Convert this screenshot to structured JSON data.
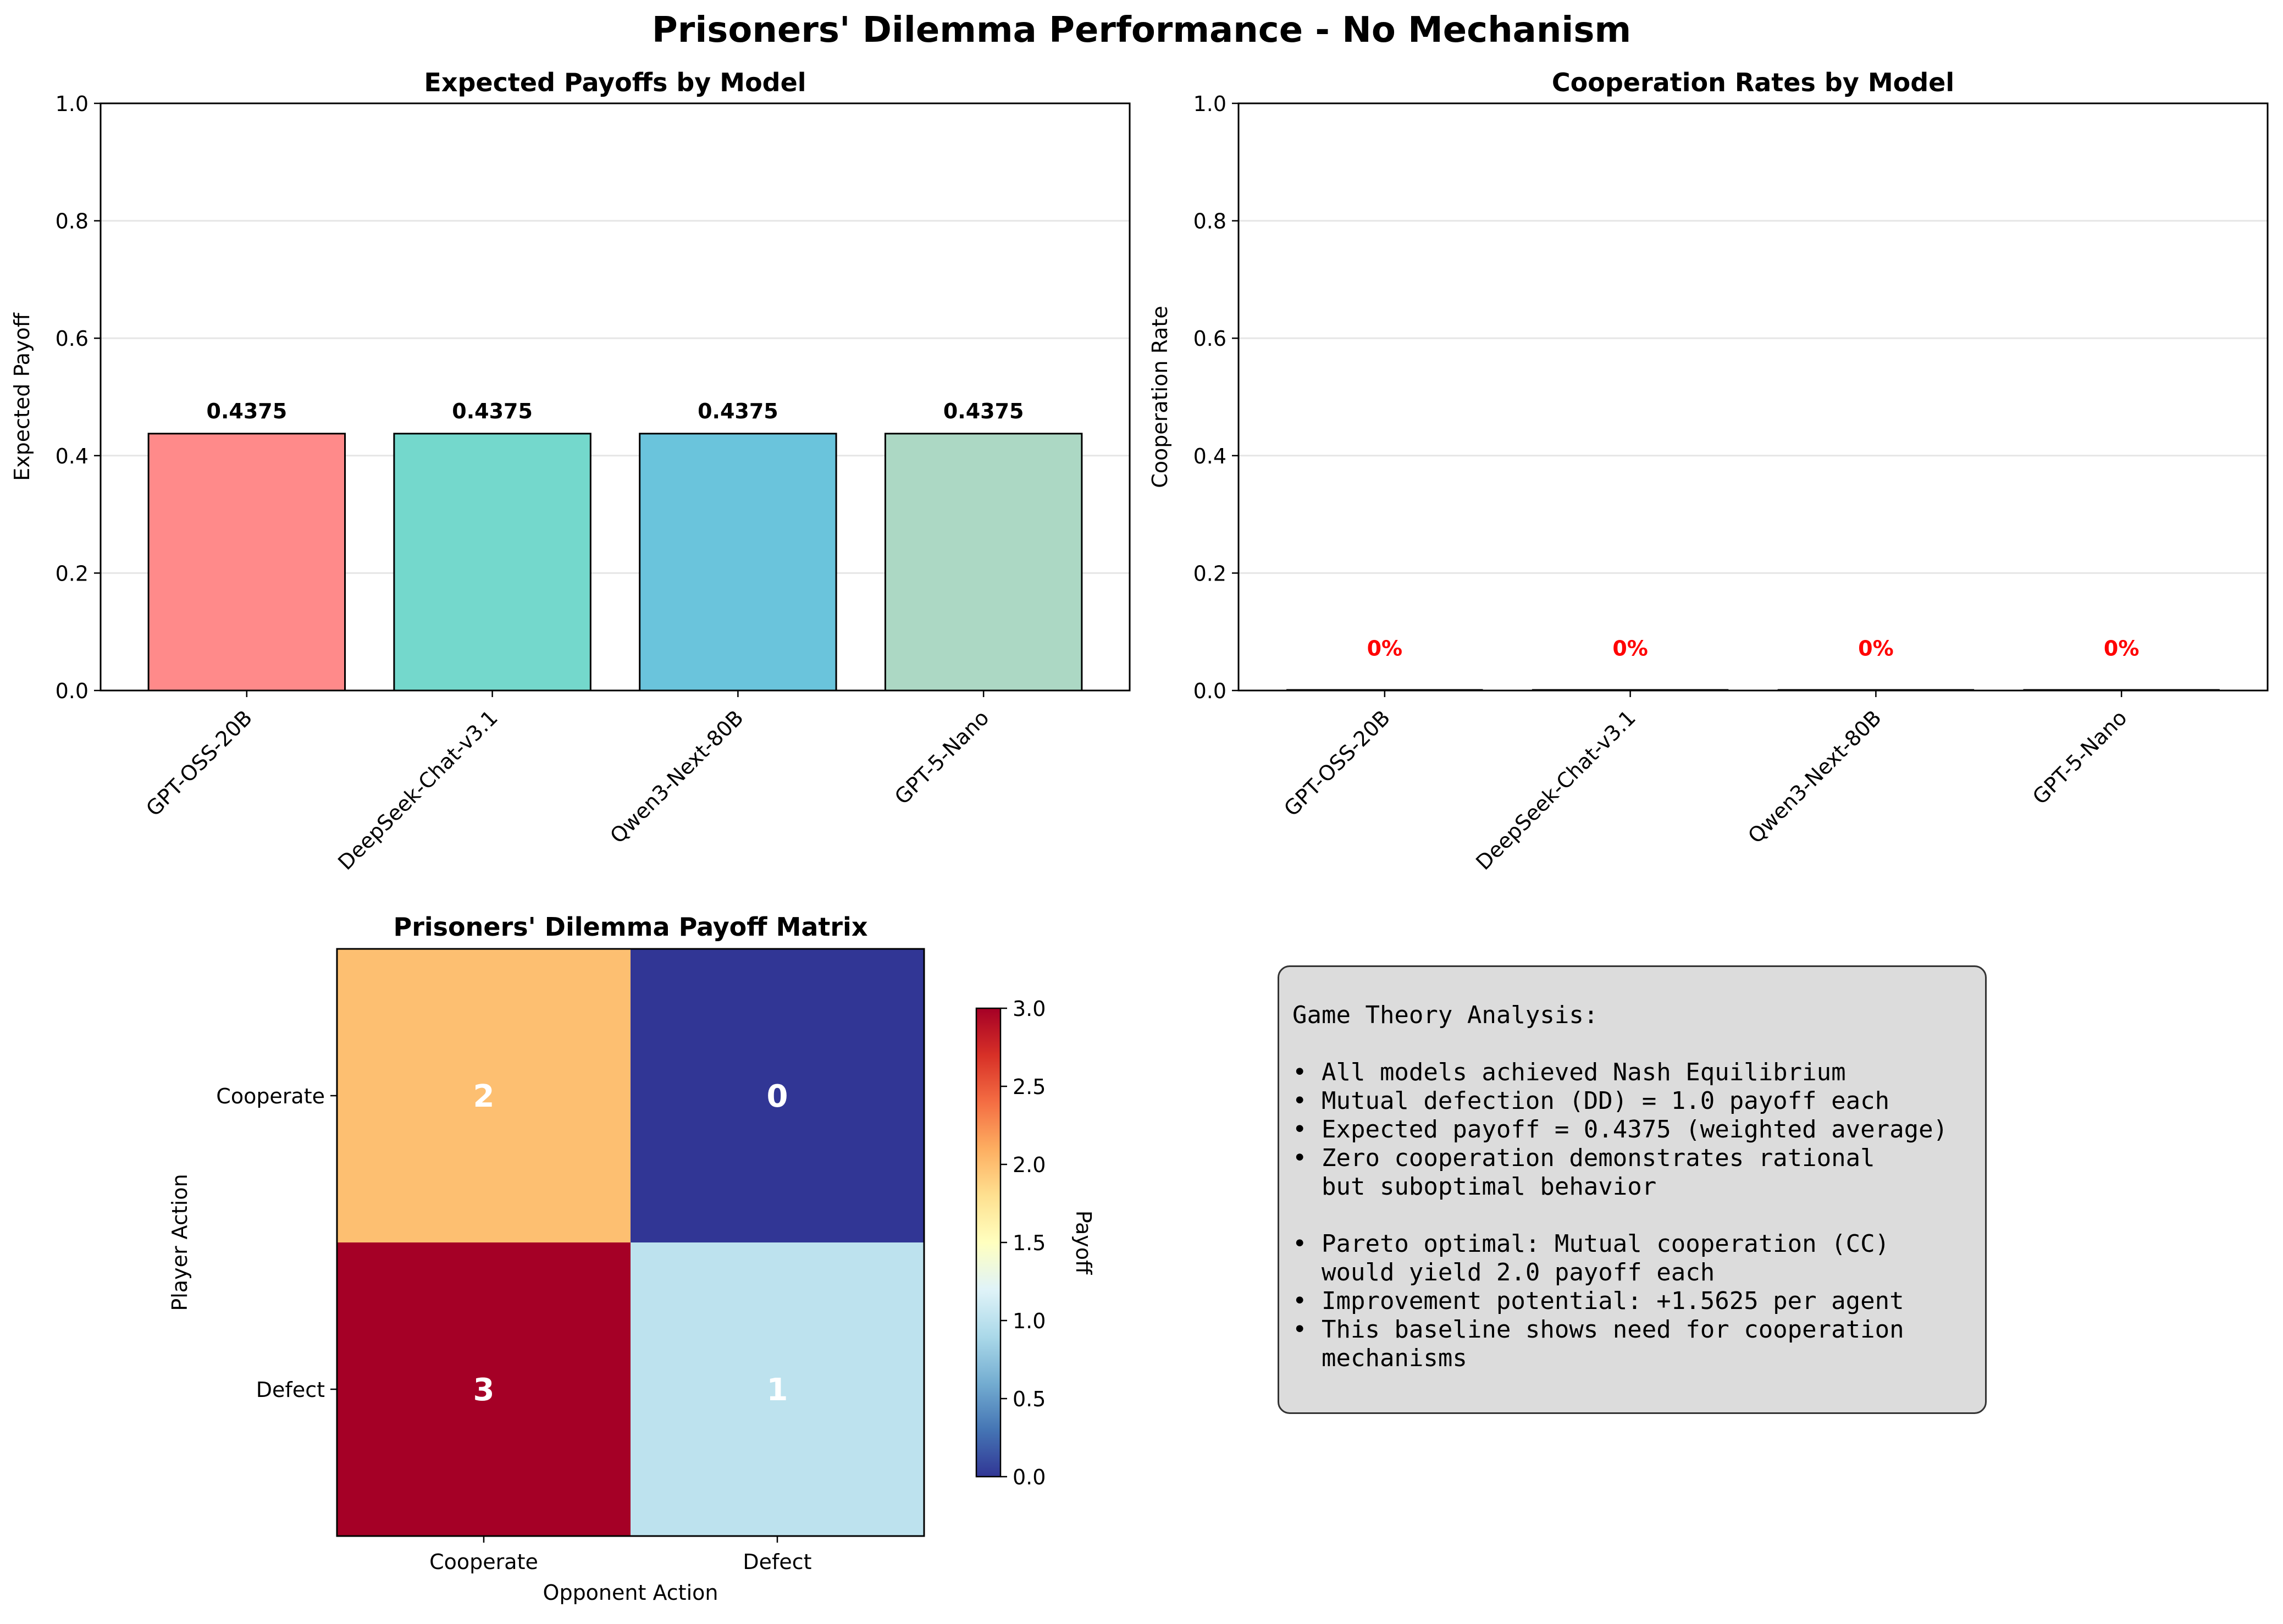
{
  "suptitle": "Prisoners' Dilemma Performance - No Mechanism",
  "chart_data": [
    {
      "type": "bar",
      "title": "Expected Payoffs by Model",
      "xlabel": "",
      "ylabel": "Expected Payoff",
      "categories": [
        "GPT-OSS-20B",
        "DeepSeek-Chat-v3.1",
        "Qwen3-Next-80B",
        "GPT-5-Nano"
      ],
      "values": [
        0.4375,
        0.4375,
        0.4375,
        0.4375
      ],
      "data_labels": [
        "0.4375",
        "0.4375",
        "0.4375",
        "0.4375"
      ],
      "colors": [
        "#ff8a8a",
        "#74d8cc",
        "#6ac4dc",
        "#acd8c4"
      ],
      "ylim": [
        0,
        1.0
      ],
      "yticks": [
        "0.0",
        "0.2",
        "0.4",
        "0.6",
        "0.8",
        "1.0"
      ],
      "grid": "y"
    },
    {
      "type": "bar",
      "title": "Cooperation Rates by Model",
      "xlabel": "",
      "ylabel": "Cooperation Rate",
      "categories": [
        "GPT-OSS-20B",
        "DeepSeek-Chat-v3.1",
        "Qwen3-Next-80B",
        "GPT-5-Nano"
      ],
      "values": [
        0,
        0,
        0,
        0
      ],
      "data_labels": [
        "0%",
        "0%",
        "0%",
        "0%"
      ],
      "label_color": "#ff0000",
      "ylim": [
        0,
        1.0
      ],
      "yticks": [
        "0.0",
        "0.2",
        "0.4",
        "0.6",
        "0.8",
        "1.0"
      ],
      "grid": "y"
    },
    {
      "type": "heatmap",
      "title": "Prisoners' Dilemma Payoff Matrix",
      "xlabel": "Opponent Action",
      "ylabel": "Player Action",
      "x_categories": [
        "Cooperate",
        "Defect"
      ],
      "y_categories": [
        "Cooperate",
        "Defect"
      ],
      "values": [
        [
          2,
          0
        ],
        [
          3,
          1
        ]
      ],
      "colormap": "RdYlBu_r",
      "colorbar_label": "Payoff",
      "colorbar_range": [
        0,
        3.0
      ],
      "colorbar_ticks": [
        "0.0",
        "0.5",
        "1.0",
        "1.5",
        "2.0",
        "2.5",
        "3.0"
      ]
    }
  ],
  "analysis": {
    "lines": [
      "Game Theory Analysis:",
      "",
      "• All models achieved Nash Equilibrium",
      "• Mutual defection (DD) = 1.0 payoff each",
      "• Expected payoff = 0.4375 (weighted average)",
      "• Zero cooperation demonstrates rational",
      "  but suboptimal behavior",
      "",
      "• Pareto optimal: Mutual cooperation (CC)",
      "  would yield 2.0 payoff each",
      "• Improvement potential: +1.5625 per agent",
      "• This baseline shows need for cooperation",
      "  mechanisms"
    ]
  }
}
